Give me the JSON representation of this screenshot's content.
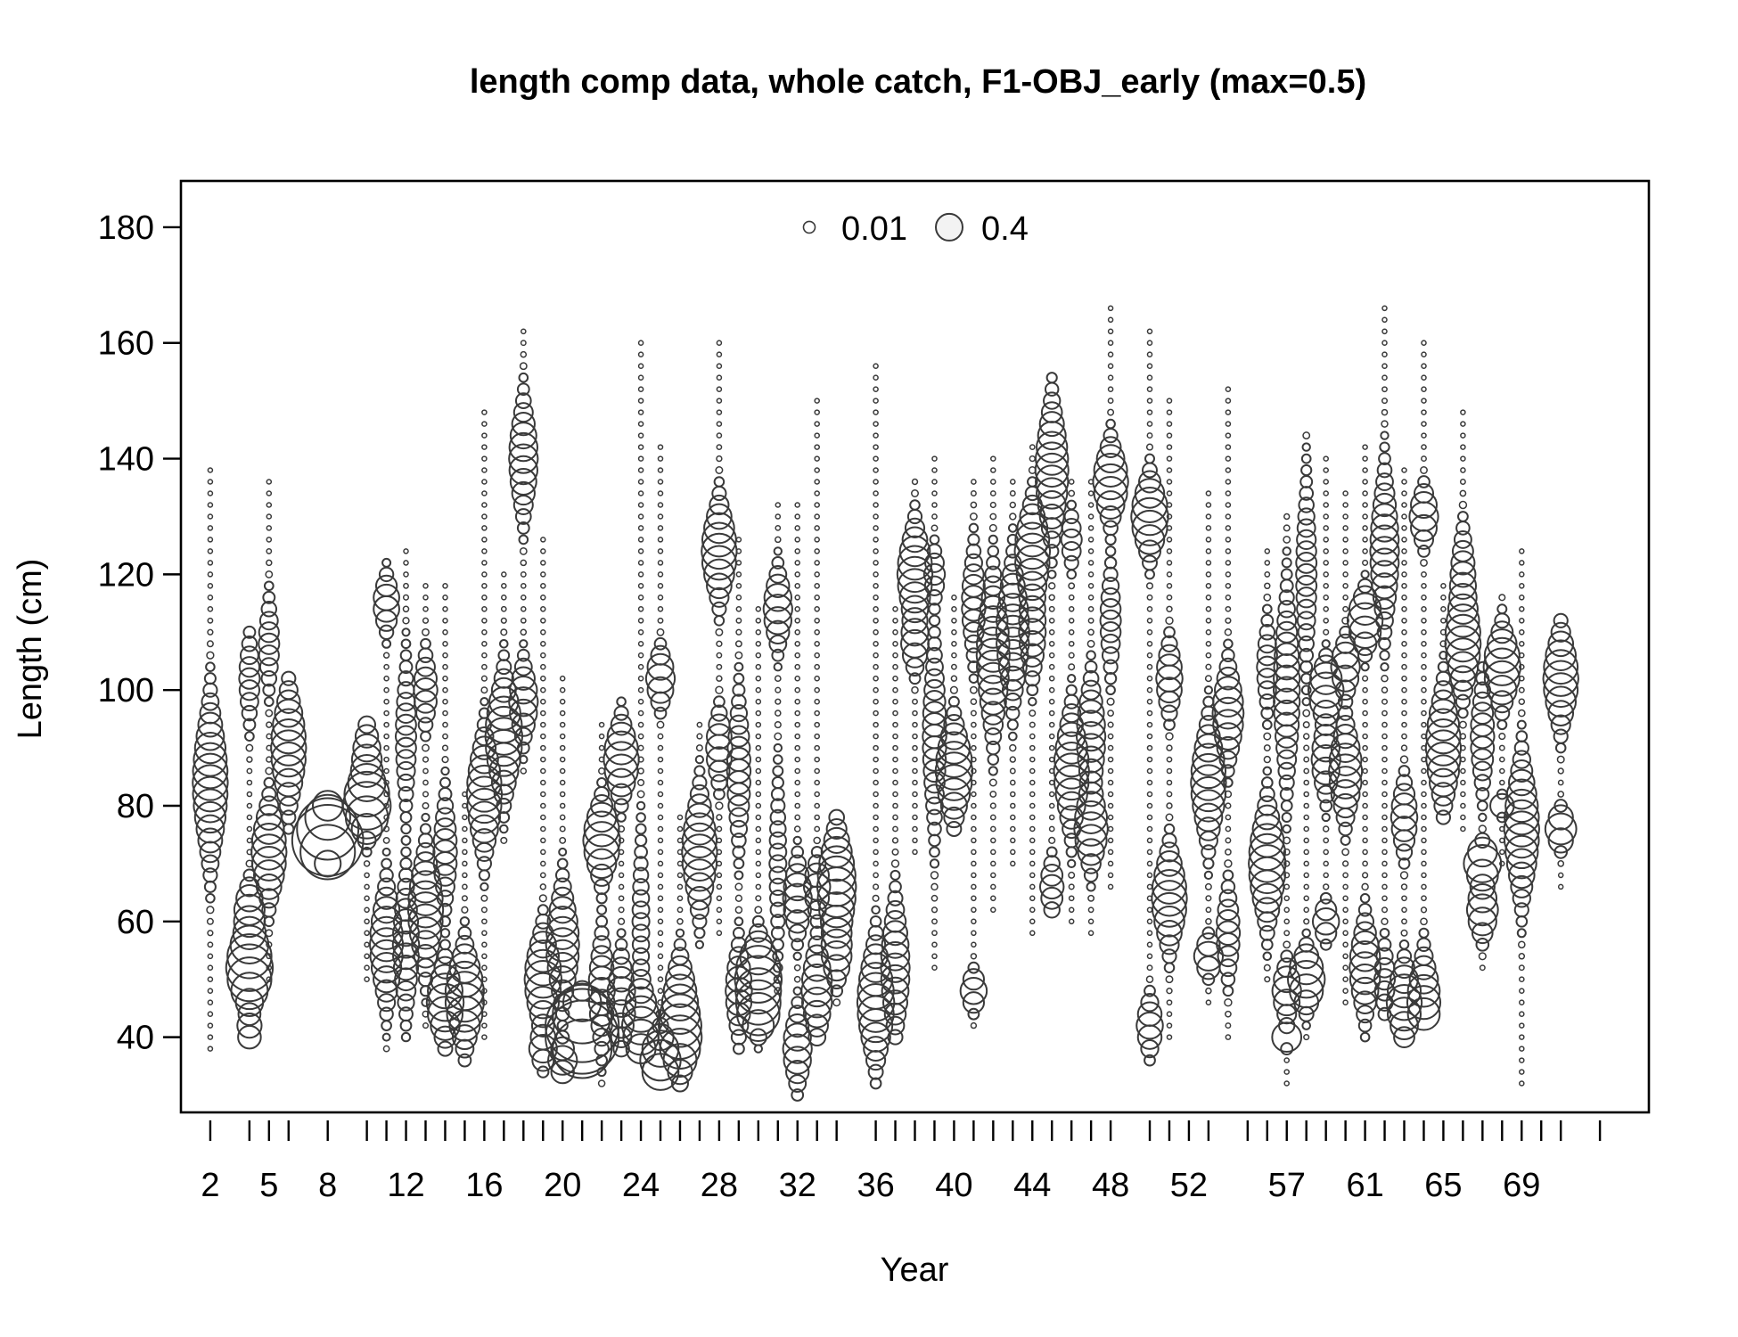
{
  "chart_data": {
    "type": "bubble",
    "title": "length comp data, whole catch, F1-OBJ_early (max=0.5)",
    "xlabel": "Year",
    "ylabel": "Length (cm)",
    "xlim": [
      0.5,
      75.5
    ],
    "ylim": [
      27,
      188
    ],
    "x_tick_labels": [
      2,
      5,
      8,
      12,
      16,
      20,
      24,
      28,
      32,
      36,
      40,
      44,
      48,
      52,
      57,
      61,
      65,
      69
    ],
    "x_tick_marks": [
      2,
      4,
      5,
      6,
      8,
      10,
      11,
      12,
      13,
      14,
      15,
      16,
      17,
      18,
      19,
      20,
      21,
      22,
      23,
      24,
      25,
      26,
      27,
      28,
      29,
      30,
      31,
      32,
      33,
      34,
      36,
      37,
      38,
      39,
      40,
      41,
      42,
      43,
      44,
      45,
      46,
      47,
      48,
      50,
      51,
      52,
      53,
      55,
      56,
      57,
      58,
      59,
      60,
      61,
      62,
      63,
      64,
      65,
      66,
      67,
      68,
      69,
      70,
      71,
      73
    ],
    "y_ticks": [
      40,
      60,
      80,
      100,
      120,
      140,
      160,
      180
    ],
    "legend": {
      "placement": "top-center",
      "entries": [
        {
          "label": "0.01",
          "value": 0.01
        },
        {
          "label": "0.4",
          "value": 0.4
        }
      ]
    },
    "bubble_scale_max": 0.5,
    "length_bin_width": 2,
    "series": [
      {
        "year": 2,
        "range": [
          38,
          138
        ],
        "peaks": [
          [
            84,
            0.09,
            8
          ]
        ]
      },
      {
        "year": 4,
        "range": [
          40,
          110
        ],
        "peaks": [
          [
            52,
            0.16,
            4
          ],
          [
            62,
            0.06,
            3
          ],
          [
            41,
            0.04,
            2
          ],
          [
            102,
            0.03,
            5
          ]
        ]
      },
      {
        "year": 5,
        "range": [
          50,
          136
        ],
        "peaks": [
          [
            72,
            0.09,
            5
          ],
          [
            108,
            0.03,
            5
          ]
        ]
      },
      {
        "year": 6,
        "range": [
          76,
          102
        ],
        "peaks": [
          [
            90,
            0.09,
            6
          ]
        ]
      },
      {
        "year": 8,
        "range": [
          70,
          80
        ],
        "peaks": [
          [
            74,
            0.36,
            2
          ],
          [
            78,
            0.1,
            2
          ]
        ]
      },
      {
        "year": 10,
        "range": [
          50,
          94
        ],
        "peaks": [
          [
            80,
            0.16,
            3
          ],
          [
            88,
            0.06,
            4
          ]
        ]
      },
      {
        "year": 11,
        "range": [
          38,
          122
        ],
        "peaks": [
          [
            56,
            0.08,
            6
          ],
          [
            115,
            0.05,
            3
          ]
        ]
      },
      {
        "year": 12,
        "range": [
          40,
          124
        ],
        "peaks": [
          [
            56,
            0.05,
            7
          ],
          [
            92,
            0.03,
            8
          ]
        ]
      },
      {
        "year": 13,
        "range": [
          42,
          118
        ],
        "peaks": [
          [
            62,
            0.09,
            6
          ],
          [
            100,
            0.04,
            4
          ]
        ]
      },
      {
        "year": 14,
        "range": [
          38,
          118
        ],
        "peaks": [
          [
            46,
            0.1,
            4
          ],
          [
            72,
            0.04,
            6
          ]
        ]
      },
      {
        "year": 15,
        "range": [
          36,
          82
        ],
        "peaks": [
          [
            47,
            0.11,
            5
          ]
        ]
      },
      {
        "year": 16,
        "range": [
          40,
          148
        ],
        "peaks": [
          [
            82,
            0.09,
            6
          ]
        ]
      },
      {
        "year": 17,
        "range": [
          74,
          120
        ],
        "peaks": [
          [
            92,
            0.1,
            6
          ]
        ]
      },
      {
        "year": 18,
        "range": [
          86,
          162
        ],
        "peaks": [
          [
            98,
            0.06,
            4
          ],
          [
            140,
            0.06,
            6
          ]
        ]
      },
      {
        "year": 19,
        "range": [
          34,
          126
        ],
        "peaks": [
          [
            50,
            0.1,
            5
          ],
          [
            38,
            0.05,
            2
          ]
        ]
      },
      {
        "year": 20,
        "range": [
          34,
          102
        ],
        "peaks": [
          [
            56,
            0.08,
            6
          ],
          [
            36,
            0.06,
            2
          ]
        ]
      },
      {
        "year": 21,
        "range": [
          38,
          48
        ],
        "peaks": [
          [
            41,
            0.42,
            3
          ]
        ]
      },
      {
        "year": 22,
        "range": [
          32,
          94
        ],
        "peaks": [
          [
            74,
            0.1,
            4
          ],
          [
            48,
            0.05,
            6
          ]
        ]
      },
      {
        "year": 23,
        "range": [
          38,
          98
        ],
        "peaks": [
          [
            88,
            0.09,
            4
          ],
          [
            46,
            0.06,
            5
          ]
        ]
      },
      {
        "year": 24,
        "range": [
          38,
          160
        ],
        "peaks": [
          [
            42,
            0.1,
            4
          ],
          [
            60,
            0.02,
            10
          ]
        ]
      },
      {
        "year": 25,
        "range": [
          34,
          142
        ],
        "peaks": [
          [
            36,
            0.12,
            3
          ],
          [
            102,
            0.06,
            3
          ]
        ]
      },
      {
        "year": 26,
        "range": [
          32,
          78
        ],
        "peaks": [
          [
            40,
            0.13,
            4
          ],
          [
            48,
            0.06,
            4
          ]
        ]
      },
      {
        "year": 27,
        "range": [
          56,
          94
        ],
        "peaks": [
          [
            72,
            0.09,
            6
          ]
        ]
      },
      {
        "year": 28,
        "range": [
          58,
          160
        ],
        "peaks": [
          [
            124,
            0.09,
            5
          ],
          [
            90,
            0.05,
            4
          ]
        ]
      },
      {
        "year": 29,
        "range": [
          38,
          126
        ],
        "peaks": [
          [
            48,
            0.05,
            5
          ],
          [
            86,
            0.04,
            8
          ]
        ]
      },
      {
        "year": 30,
        "range": [
          38,
          114
        ],
        "peaks": [
          [
            50,
            0.16,
            4
          ],
          [
            44,
            0.08,
            2
          ]
        ]
      },
      {
        "year": 31,
        "range": [
          48,
          132
        ],
        "peaks": [
          [
            114,
            0.06,
            4
          ],
          [
            70,
            0.02,
            10
          ]
        ]
      },
      {
        "year": 32,
        "range": [
          30,
          132
        ],
        "peaks": [
          [
            64,
            0.06,
            4
          ],
          [
            38,
            0.06,
            4
          ]
        ]
      },
      {
        "year": 33,
        "range": [
          40,
          150
        ],
        "peaks": [
          [
            48,
            0.07,
            5
          ],
          [
            66,
            0.05,
            3
          ]
        ]
      },
      {
        "year": 34,
        "range": [
          46,
          78
        ],
        "peaks": [
          [
            66,
            0.11,
            6
          ],
          [
            54,
            0.05,
            3
          ]
        ]
      },
      {
        "year": 36,
        "range": [
          32,
          156
        ],
        "peaks": [
          [
            46,
            0.1,
            6
          ]
        ]
      },
      {
        "year": 37,
        "range": [
          40,
          114
        ],
        "peaks": [
          [
            52,
            0.06,
            7
          ]
        ]
      },
      {
        "year": 38,
        "range": [
          72,
          136
        ],
        "peaks": [
          [
            120,
            0.09,
            5
          ],
          [
            108,
            0.05,
            3
          ]
        ]
      },
      {
        "year": 39,
        "range": [
          52,
          140
        ],
        "peaks": [
          [
            92,
            0.04,
            10
          ],
          [
            120,
            0.03,
            3
          ]
        ]
      },
      {
        "year": 40,
        "range": [
          76,
          116
        ],
        "peaks": [
          [
            86,
            0.1,
            5
          ]
        ]
      },
      {
        "year": 41,
        "range": [
          42,
          136
        ],
        "peaks": [
          [
            48,
            0.05,
            2
          ],
          [
            115,
            0.04,
            6
          ]
        ]
      },
      {
        "year": 42,
        "range": [
          62,
          140
        ],
        "peaks": [
          [
            106,
            0.08,
            8
          ]
        ]
      },
      {
        "year": 43,
        "range": [
          70,
          136
        ],
        "peaks": [
          [
            110,
            0.08,
            7
          ]
        ]
      },
      {
        "year": 44,
        "range": [
          58,
          142
        ],
        "peaks": [
          [
            124,
            0.09,
            5
          ],
          [
            110,
            0.05,
            5
          ]
        ]
      },
      {
        "year": 45,
        "range": [
          62,
          154
        ],
        "peaks": [
          [
            138,
            0.08,
            7
          ],
          [
            66,
            0.04,
            3
          ]
        ]
      },
      {
        "year": 46,
        "range": [
          60,
          136
        ],
        "peaks": [
          [
            86,
            0.09,
            6
          ],
          [
            126,
            0.03,
            3
          ]
        ]
      },
      {
        "year": 47,
        "range": [
          58,
          136
        ],
        "peaks": [
          [
            92,
            0.06,
            6
          ],
          [
            76,
            0.08,
            4
          ]
        ]
      },
      {
        "year": 48,
        "range": [
          66,
          166
        ],
        "peaks": [
          [
            136,
            0.09,
            4
          ],
          [
            112,
            0.03,
            6
          ]
        ]
      },
      {
        "year": 50,
        "range": [
          36,
          162
        ],
        "peaks": [
          [
            130,
            0.1,
            4
          ],
          [
            42,
            0.05,
            3
          ]
        ]
      },
      {
        "year": 51,
        "range": [
          40,
          150
        ],
        "peaks": [
          [
            64,
            0.09,
            5
          ],
          [
            102,
            0.05,
            4
          ]
        ]
      },
      {
        "year": 53,
        "range": [
          46,
          134
        ],
        "peaks": [
          [
            84,
            0.09,
            6
          ],
          [
            54,
            0.06,
            2
          ]
        ]
      },
      {
        "year": 54,
        "range": [
          40,
          152
        ],
        "peaks": [
          [
            96,
            0.07,
            5
          ],
          [
            58,
            0.04,
            5
          ]
        ]
      },
      {
        "year": 56,
        "range": [
          50,
          124
        ],
        "peaks": [
          [
            70,
            0.1,
            6
          ],
          [
            104,
            0.03,
            5
          ]
        ]
      },
      {
        "year": 57,
        "range": [
          32,
          130
        ],
        "peaks": [
          [
            48,
            0.06,
            3
          ],
          [
            100,
            0.05,
            10
          ],
          [
            40,
            0.06,
            1
          ]
        ]
      },
      {
        "year": 58,
        "range": [
          40,
          144
        ],
        "peaks": [
          [
            50,
            0.1,
            3
          ],
          [
            120,
            0.03,
            10
          ]
        ]
      },
      {
        "year": 59,
        "range": [
          56,
          140
        ],
        "peaks": [
          [
            100,
            0.09,
            3
          ],
          [
            88,
            0.06,
            4
          ],
          [
            60,
            0.05,
            2
          ]
        ]
      },
      {
        "year": 60,
        "range": [
          46,
          134
        ],
        "peaks": [
          [
            86,
            0.08,
            5
          ],
          [
            104,
            0.06,
            3
          ]
        ]
      },
      {
        "year": 61,
        "range": [
          40,
          142
        ],
        "peaks": [
          [
            112,
            0.09,
            3
          ],
          [
            52,
            0.07,
            5
          ]
        ]
      },
      {
        "year": 62,
        "range": [
          44,
          166
        ],
        "peaks": [
          [
            124,
            0.06,
            8
          ],
          [
            50,
            0.03,
            4
          ]
        ]
      },
      {
        "year": 63,
        "range": [
          40,
          138
        ],
        "peaks": [
          [
            46,
            0.09,
            4
          ],
          [
            78,
            0.05,
            4
          ]
        ]
      },
      {
        "year": 64,
        "range": [
          44,
          160
        ],
        "peaks": [
          [
            46,
            0.08,
            5
          ],
          [
            130,
            0.06,
            3
          ]
        ]
      },
      {
        "year": 65,
        "range": [
          78,
          118
        ],
        "peaks": [
          [
            90,
            0.09,
            6
          ]
        ]
      },
      {
        "year": 66,
        "range": [
          76,
          148
        ],
        "peaks": [
          [
            108,
            0.09,
            5
          ],
          [
            120,
            0.04,
            5
          ]
        ]
      },
      {
        "year": 67,
        "range": [
          52,
          104
        ],
        "peaks": [
          [
            70,
            0.1,
            2
          ],
          [
            62,
            0.07,
            3
          ],
          [
            92,
            0.04,
            6
          ]
        ]
      },
      {
        "year": 68,
        "range": [
          70,
          116
        ],
        "peaks": [
          [
            104,
            0.1,
            4
          ],
          [
            80,
            0.04,
            1
          ]
        ]
      },
      {
        "year": 69,
        "range": [
          32,
          124
        ],
        "peaks": [
          [
            76,
            0.09,
            7
          ]
        ]
      },
      {
        "year": 71,
        "range": [
          66,
          112
        ],
        "peaks": [
          [
            102,
            0.09,
            5
          ],
          [
            76,
            0.07,
            2
          ]
        ]
      }
    ]
  }
}
